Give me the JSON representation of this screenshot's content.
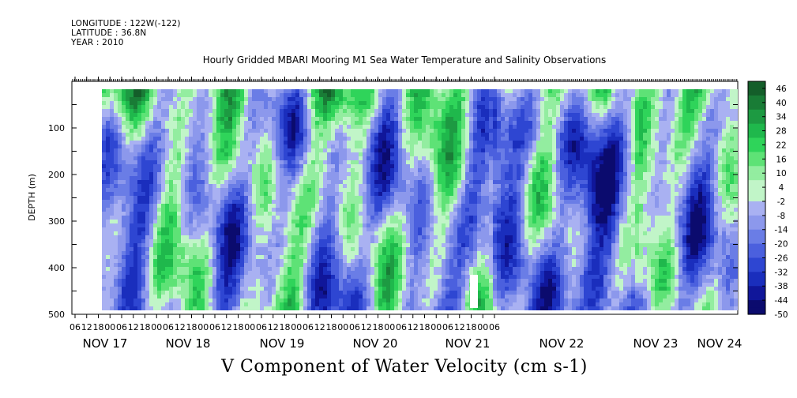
{
  "header": {
    "longitude": "LONGITUDE : 122W(-122)",
    "latitude": "LATITUDE : 36.8N",
    "year": "YEAR : 2010"
  },
  "chart_data": {
    "type": "heatmap",
    "title": "Hourly Gridded MBARI Mooring M1 Sea Water Temperature and Salinity Observations",
    "xlabel": "V Component of Water Velocity (cm s-1)",
    "ylabel": "DEPTH (m)",
    "ylim": [
      500,
      0
    ],
    "y_ticks": [
      100,
      200,
      300,
      400,
      500
    ],
    "x_hour_ticks": [
      "06",
      "12",
      "18",
      "00",
      "06",
      "12",
      "18",
      "00",
      "06",
      "12",
      "18",
      "00",
      "06",
      "12",
      "18",
      "00",
      "06",
      "12",
      "18",
      "00",
      "06",
      "12",
      "18",
      "00",
      "06",
      "12",
      "18",
      "00",
      "06",
      "12",
      "18",
      "00",
      "06",
      "12",
      "18",
      "00",
      "06"
    ],
    "x_day_labels": [
      "NOV 17",
      "NOV 18",
      "NOV 19",
      "NOV 20",
      "NOV 21",
      "NOV 22",
      "NOV 23",
      "NOV 24"
    ],
    "colorbar_labels": [
      "46",
      "40",
      "34",
      "28",
      "22",
      "16",
      "10",
      "4",
      "-2",
      "-8",
      "-14",
      "-20",
      "-26",
      "-32",
      "-38",
      "-44",
      "-50"
    ],
    "colorbar_range": [
      -50,
      49
    ],
    "colors": {
      "positive_strong": "#1f7f3a",
      "positive": "#28d060",
      "positive_weak": "#9ff0ac",
      "negative_weak": "#a9b0f2",
      "negative": "#4f64e0",
      "negative_strong": "#0a0a70"
    }
  }
}
